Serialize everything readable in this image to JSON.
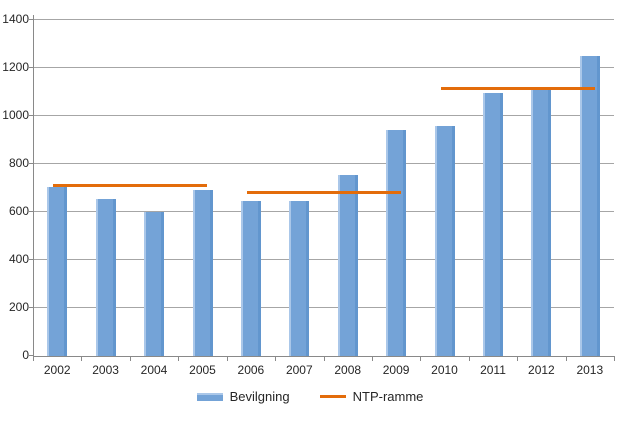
{
  "figure": {
    "background": "#ffffff",
    "colors": {
      "bar": "#74a3d7",
      "line": "#e36c0a",
      "gridline": "#a6a6a6",
      "axis": "#898989",
      "text": "#262626"
    }
  },
  "chart_data": {
    "type": "bar",
    "title": "",
    "xlabel": "",
    "ylabel": "",
    "categories": [
      "2002",
      "2003",
      "2004",
      "2005",
      "2006",
      "2007",
      "2008",
      "2009",
      "2010",
      "2011",
      "2012",
      "2013"
    ],
    "series": [
      {
        "name": "Bevilgning",
        "type": "bar",
        "color": "#74a3d7",
        "values": [
          705,
          655,
          600,
          690,
          645,
          645,
          755,
          940,
          960,
          1095,
          1110,
          1250
        ]
      },
      {
        "name": "NTP-ramme",
        "type": "line",
        "color": "#e36c0a",
        "segments": [
          {
            "from": "2002",
            "to": "2005",
            "value": 710
          },
          {
            "from": "2006",
            "to": "2009",
            "value": 680
          },
          {
            "from": "2010",
            "to": "2013",
            "value": 1115
          }
        ]
      }
    ],
    "ylim": [
      0,
      1400
    ],
    "ytick_interval": 200,
    "ytick_labels": [
      "0",
      "200",
      "400",
      "600",
      "800",
      "1000",
      "1200",
      "1400"
    ],
    "grid": true,
    "legend_position": "bottom"
  }
}
